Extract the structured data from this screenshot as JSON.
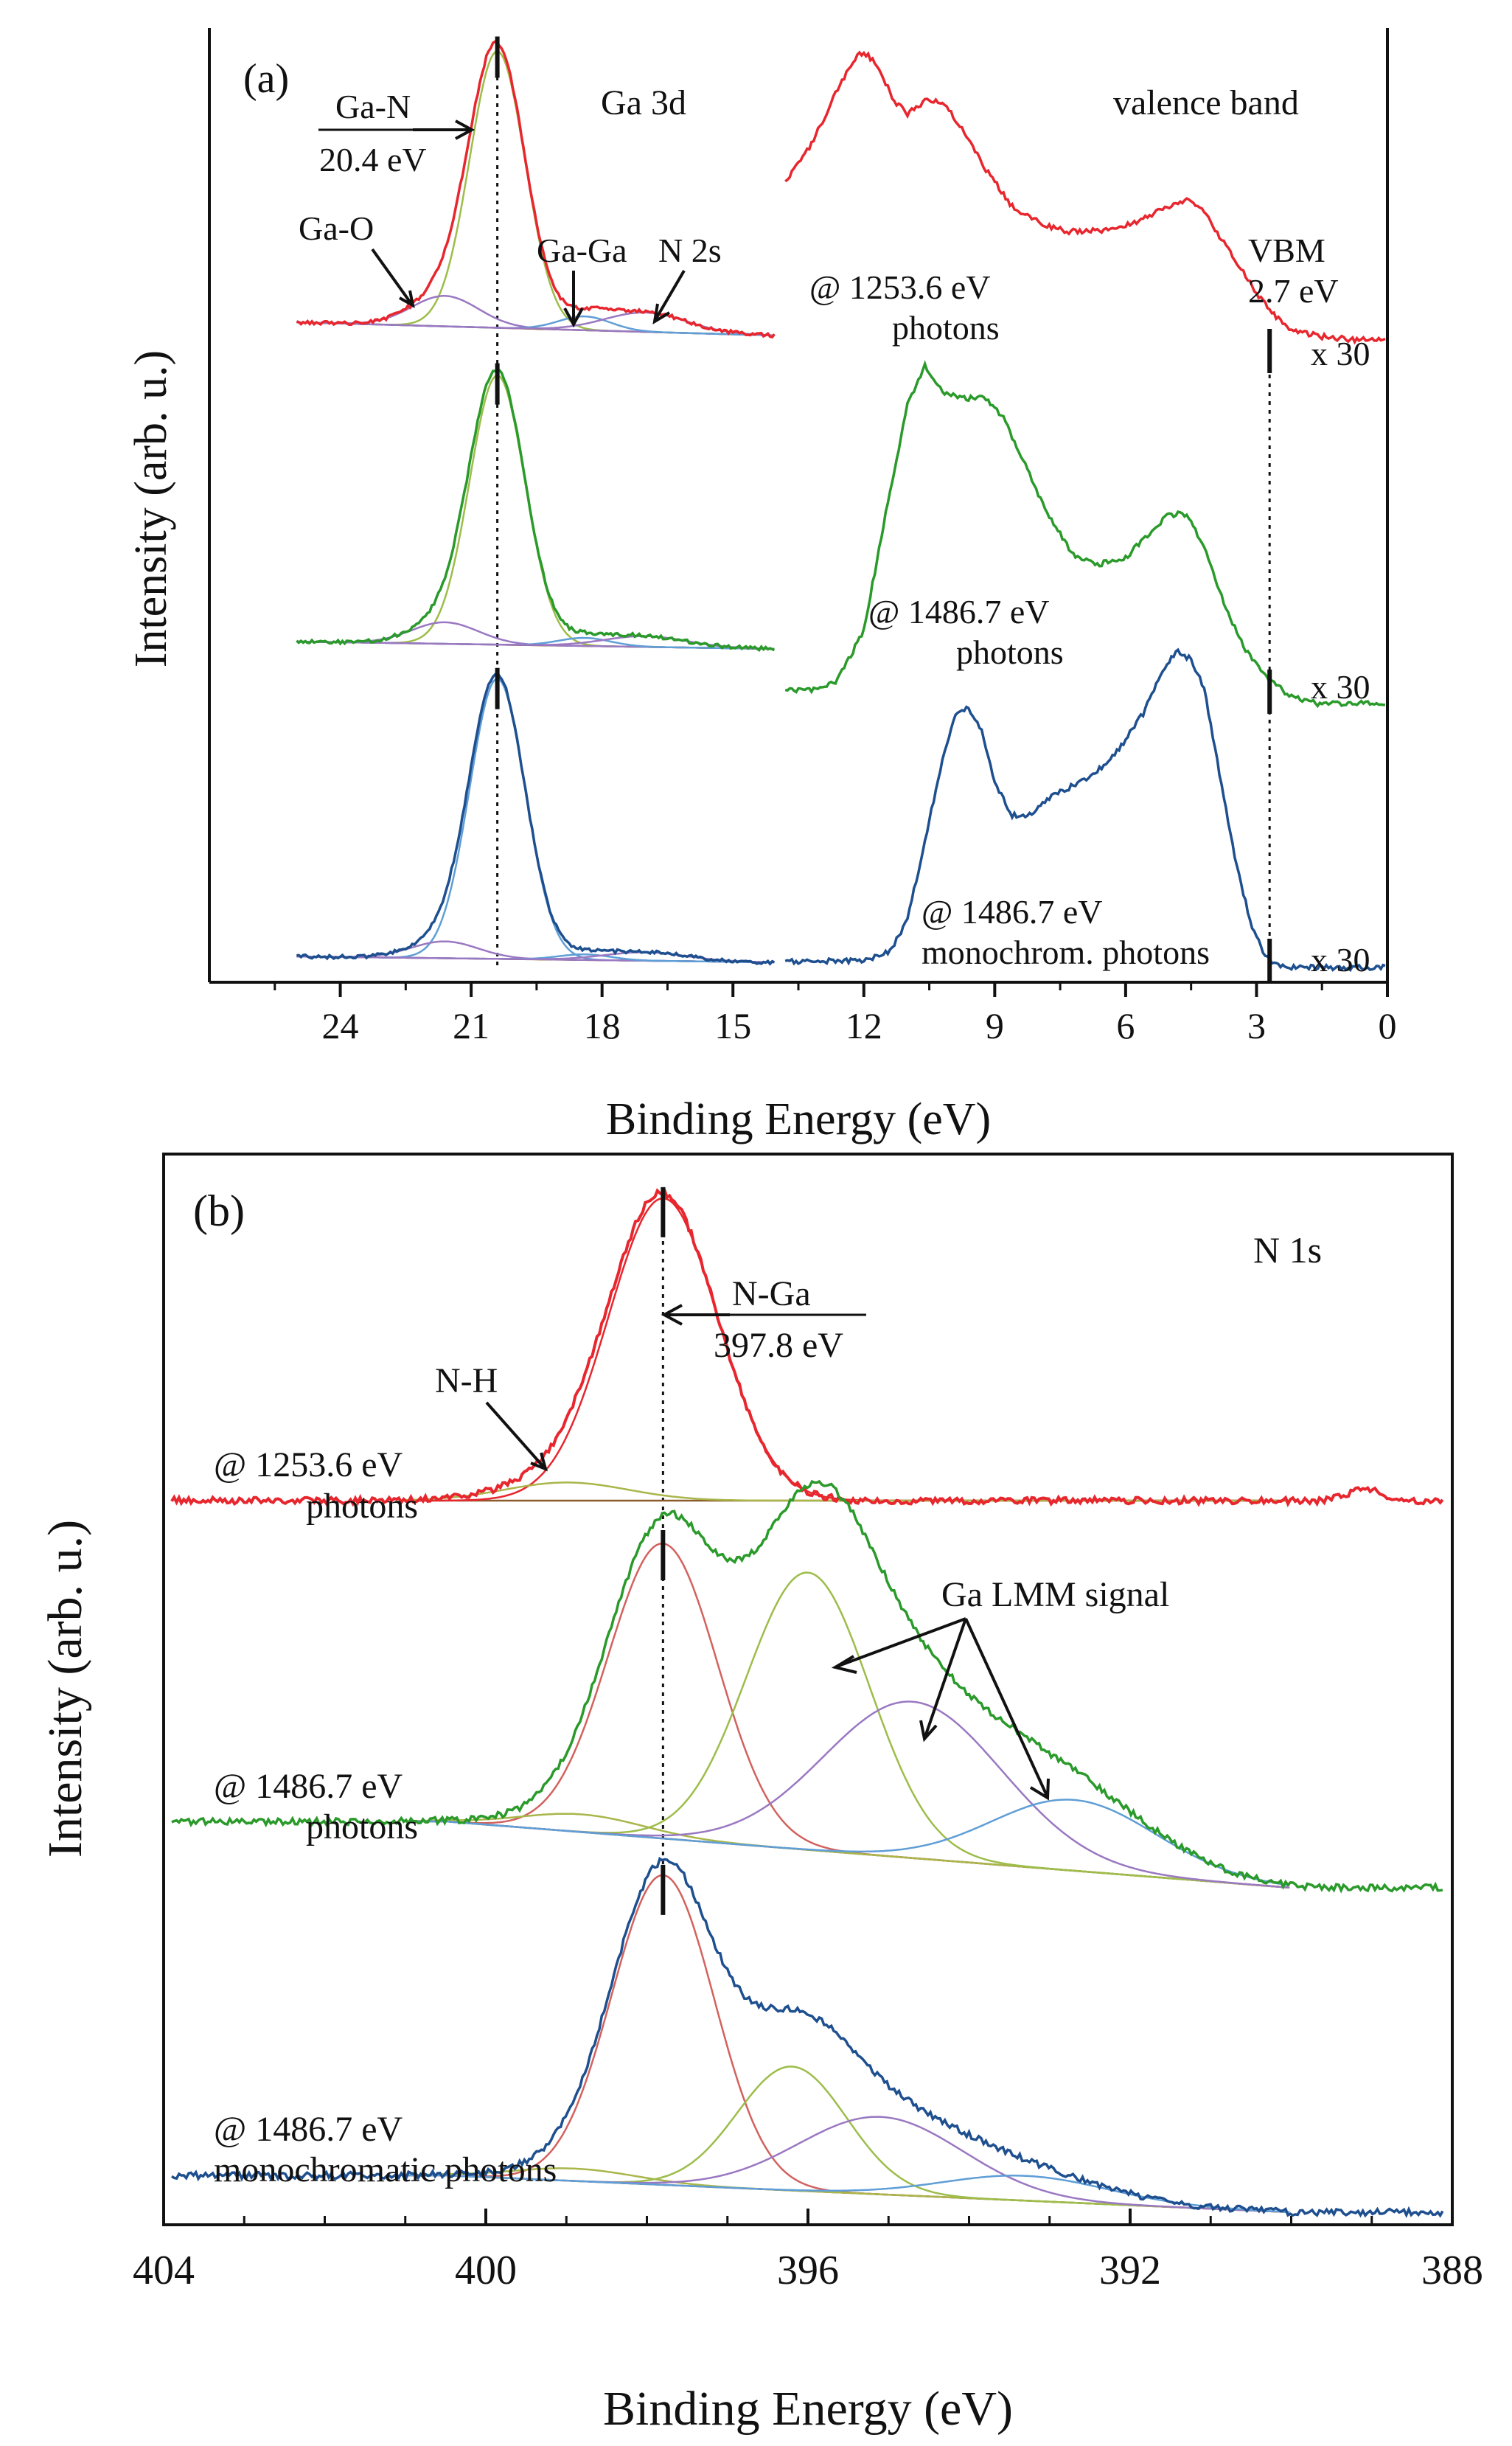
{
  "colors": {
    "red": "#e8262e",
    "green": "#2a9a2a",
    "blue": "#1e4f8f",
    "fit_brown": "#8a5a2b",
    "fit_light_green": "#9dbd4a",
    "fit_purple": "#9a78c2",
    "fit_light_blue": "#5f9ed6",
    "fit_pink": "#d2625e",
    "fit_olive": "#a9b64a",
    "axis": "#111111"
  },
  "chart_data": [
    {
      "panel_label": "(a)",
      "type": "line",
      "xlabel": "Binding Energy (eV)",
      "ylabel": "Intensity (arb. u.)",
      "xlim": [
        27,
        0
      ],
      "x_ticks": [
        24,
        21,
        18,
        15,
        12,
        9,
        6,
        3,
        0
      ],
      "x_tick_labels": [
        "24",
        "21",
        "18",
        "15",
        "12",
        "9",
        "6",
        "3",
        "0"
      ],
      "grid": false,
      "labels": {
        "core_level": "Ga 3d",
        "valence": "valence band",
        "ga_n_name": "Ga-N",
        "ga_n_energy": "20.4 eV",
        "ga_o": "Ga-O",
        "ga_ga": "Ga-Ga",
        "n2s": "N 2s",
        "vbm_name": "VBM",
        "vbm_energy": "2.7 eV",
        "source_1_line1": "@ 1253.6 eV",
        "source_1_line2": "photons",
        "source_2_line1": "@ 1486.7 eV",
        "source_2_line2": "photons",
        "source_3_line1": "@ 1486.7 eV",
        "source_3_line2": "monochrom. photons",
        "scale_1": "x 30",
        "scale_2": "x 30",
        "scale_3": "x 30"
      },
      "reference_lines": [
        20.4,
        2.7
      ],
      "ga3d_components": [
        {
          "name": "Ga-N",
          "center": 20.4,
          "fwhm": 1.5
        },
        {
          "name": "Ga-O",
          "center": 21.6,
          "fwhm": 1.8
        },
        {
          "name": "Ga-Ga",
          "center": 18.4,
          "fwhm": 1.4
        },
        {
          "name": "N 2s",
          "center": 17.0,
          "fwhm": 2.2
        }
      ],
      "series": [
        {
          "source": "@ 1253.6 eV photons",
          "ga3d_relative_amplitudes": [
            1.0,
            0.11,
            0.05,
            0.07
          ],
          "valence_band": {
            "x": [
              13.8,
              13.2,
              12.6,
              12.2,
              12.0,
              11.7,
              11.3,
              11.0,
              10.6,
              10.2,
              9.8,
              9.2,
              8.6,
              8.0,
              7.4,
              6.8,
              6.2,
              5.6,
              5.0,
              4.6,
              4.2,
              3.6,
              3.0,
              2.6,
              2.2,
              1.5,
              0.8,
              0.0
            ],
            "y": [
              0.58,
              0.7,
              0.88,
              0.98,
              1.0,
              0.96,
              0.84,
              0.8,
              0.84,
              0.84,
              0.76,
              0.62,
              0.5,
              0.45,
              0.42,
              0.42,
              0.43,
              0.46,
              0.5,
              0.52,
              0.48,
              0.35,
              0.22,
              0.15,
              0.1,
              0.08,
              0.07,
              0.07
            ]
          }
        },
        {
          "source": "@ 1486.7 eV photons",
          "ga3d_relative_amplitudes": [
            1.0,
            0.08,
            0.03,
            0.04
          ],
          "valence_band": {
            "x": [
              13.8,
              13.2,
              12.6,
              12.0,
              11.5,
              11.0,
              10.6,
              10.2,
              9.8,
              9.2,
              8.8,
              8.3,
              7.8,
              7.2,
              6.6,
              6.0,
              5.4,
              5.0,
              4.6,
              4.2,
              3.8,
              3.3,
              2.7,
              2.2,
              1.6,
              1.0,
              0.5,
              0.0
            ],
            "y": [
              0.02,
              0.02,
              0.05,
              0.2,
              0.55,
              0.88,
              1.0,
              0.92,
              0.9,
              0.9,
              0.84,
              0.7,
              0.55,
              0.43,
              0.4,
              0.42,
              0.5,
              0.55,
              0.55,
              0.45,
              0.3,
              0.15,
              0.05,
              0.0,
              -0.02,
              -0.02,
              -0.02,
              -0.02
            ]
          }
        },
        {
          "source": "@ 1486.7 eV monochrom. photons",
          "ga3d_relative_amplitudes": [
            1.0,
            0.06,
            0.02,
            0.03
          ],
          "valence_band": {
            "x": [
              13.8,
              13.0,
              12.0,
              11.4,
              11.0,
              10.6,
              10.2,
              9.9,
              9.6,
              9.3,
              9.0,
              8.6,
              8.2,
              7.8,
              7.4,
              6.8,
              6.2,
              5.6,
              5.1,
              4.8,
              4.5,
              4.2,
              3.9,
              3.5,
              3.1,
              2.8,
              2.6,
              2.2,
              1.5,
              0.8,
              0.0
            ],
            "y": [
              0.02,
              0.02,
              0.02,
              0.05,
              0.15,
              0.4,
              0.65,
              0.8,
              0.82,
              0.75,
              0.58,
              0.48,
              0.48,
              0.53,
              0.56,
              0.6,
              0.68,
              0.8,
              0.95,
              1.0,
              0.97,
              0.88,
              0.65,
              0.35,
              0.12,
              0.04,
              0.01,
              0.0,
              0.0,
              0.0,
              0.0
            ]
          }
        }
      ]
    },
    {
      "panel_label": "(b)",
      "type": "line",
      "xlabel": "Binding Energy (eV)",
      "ylabel": "Intensity (arb. u.)",
      "xlim": [
        404,
        388
      ],
      "x_ticks": [
        404,
        400,
        396,
        392,
        388
      ],
      "x_tick_labels": [
        "404",
        "400",
        "396",
        "392",
        "388"
      ],
      "grid": false,
      "labels": {
        "core_level": "N 1s",
        "n_ga_name": "N-Ga",
        "n_ga_energy": "397.8 eV",
        "n_h": "N-H",
        "ga_lmm": "Ga LMM signal",
        "source_1_line1": "@ 1253.6 eV",
        "source_1_line2": "photons",
        "source_2_line1": "@ 1486.7 eV",
        "source_2_line2": "photons",
        "source_3_line1": "@ 1486.7 eV",
        "source_3_line2": "monochromatic photons"
      },
      "reference_lines": [
        397.8
      ],
      "series": [
        {
          "source": "@ 1253.6 eV photons",
          "components": [
            {
              "name": "N-Ga",
              "center": 397.8,
              "fwhm": 1.6,
              "amplitude": 1.0
            },
            {
              "name": "N-H",
              "center": 399.0,
              "fwhm": 1.8,
              "amplitude": 0.06
            }
          ]
        },
        {
          "source": "@ 1486.7 eV photons",
          "components": [
            {
              "name": "N-Ga",
              "center": 397.8,
              "fwhm": 1.6,
              "amplitude": 1.0
            },
            {
              "name": "N-H",
              "center": 398.8,
              "fwhm": 1.8,
              "amplitude": 0.06
            },
            {
              "name": "Ga LMM",
              "center": 396.0,
              "fwhm": 1.8,
              "amplitude": 0.94
            },
            {
              "name": "Ga LMM",
              "center": 394.7,
              "fwhm": 2.6,
              "amplitude": 0.53
            },
            {
              "name": "Ga LMM",
              "center": 392.7,
              "fwhm": 2.4,
              "amplitude": 0.24
            }
          ]
        },
        {
          "source": "@ 1486.7 eV monochromatic photons",
          "components": [
            {
              "name": "N-Ga",
              "center": 397.8,
              "fwhm": 1.5,
              "amplitude": 1.0
            },
            {
              "name": "N-H",
              "center": 398.9,
              "fwhm": 1.8,
              "amplitude": 0.04
            },
            {
              "name": "Ga LMM",
              "center": 396.2,
              "fwhm": 1.6,
              "amplitude": 0.4
            },
            {
              "name": "Ga LMM",
              "center": 395.1,
              "fwhm": 2.4,
              "amplitude": 0.25
            },
            {
              "name": "Ga LMM",
              "center": 393.3,
              "fwhm": 2.4,
              "amplitude": 0.08
            }
          ]
        }
      ]
    }
  ]
}
